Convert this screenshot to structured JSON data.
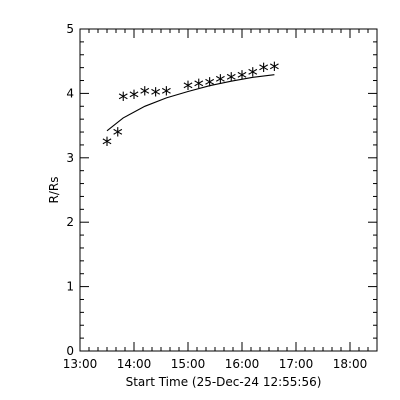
{
  "chart_data": {
    "type": "scatter",
    "title": "",
    "xlabel": "Start Time (25-Dec-24 12:55:56)",
    "ylabel": "R/Rs",
    "xlim": [
      "13:00",
      "18:30"
    ],
    "ylim": [
      0,
      5
    ],
    "x_ticks": [
      "13:00",
      "14:00",
      "15:00",
      "16:00",
      "17:00",
      "18:00"
    ],
    "y_ticks": [
      "0",
      "1",
      "2",
      "3",
      "4",
      "5"
    ],
    "grid": false,
    "legend": "none",
    "series": [
      {
        "kind": "points",
        "marker": "asterisk",
        "x": [
          "13:30",
          "13:42",
          "13:48",
          "14:00",
          "14:12",
          "14:24",
          "14:36",
          "15:00",
          "15:12",
          "15:24",
          "15:36",
          "15:48",
          "16:00",
          "16:12",
          "16:24",
          "16:36"
        ],
        "y": [
          3.2,
          3.35,
          3.9,
          3.93,
          3.98,
          3.97,
          3.98,
          4.07,
          4.1,
          4.12,
          4.17,
          4.2,
          4.23,
          4.28,
          4.35,
          4.36
        ]
      },
      {
        "kind": "fit-line",
        "x": [
          "13:30",
          "13:48",
          "14:12",
          "14:36",
          "15:00",
          "15:24",
          "15:48",
          "16:12",
          "16:36"
        ],
        "y": [
          3.42,
          3.62,
          3.8,
          3.93,
          4.03,
          4.12,
          4.19,
          4.25,
          4.29
        ]
      }
    ]
  }
}
